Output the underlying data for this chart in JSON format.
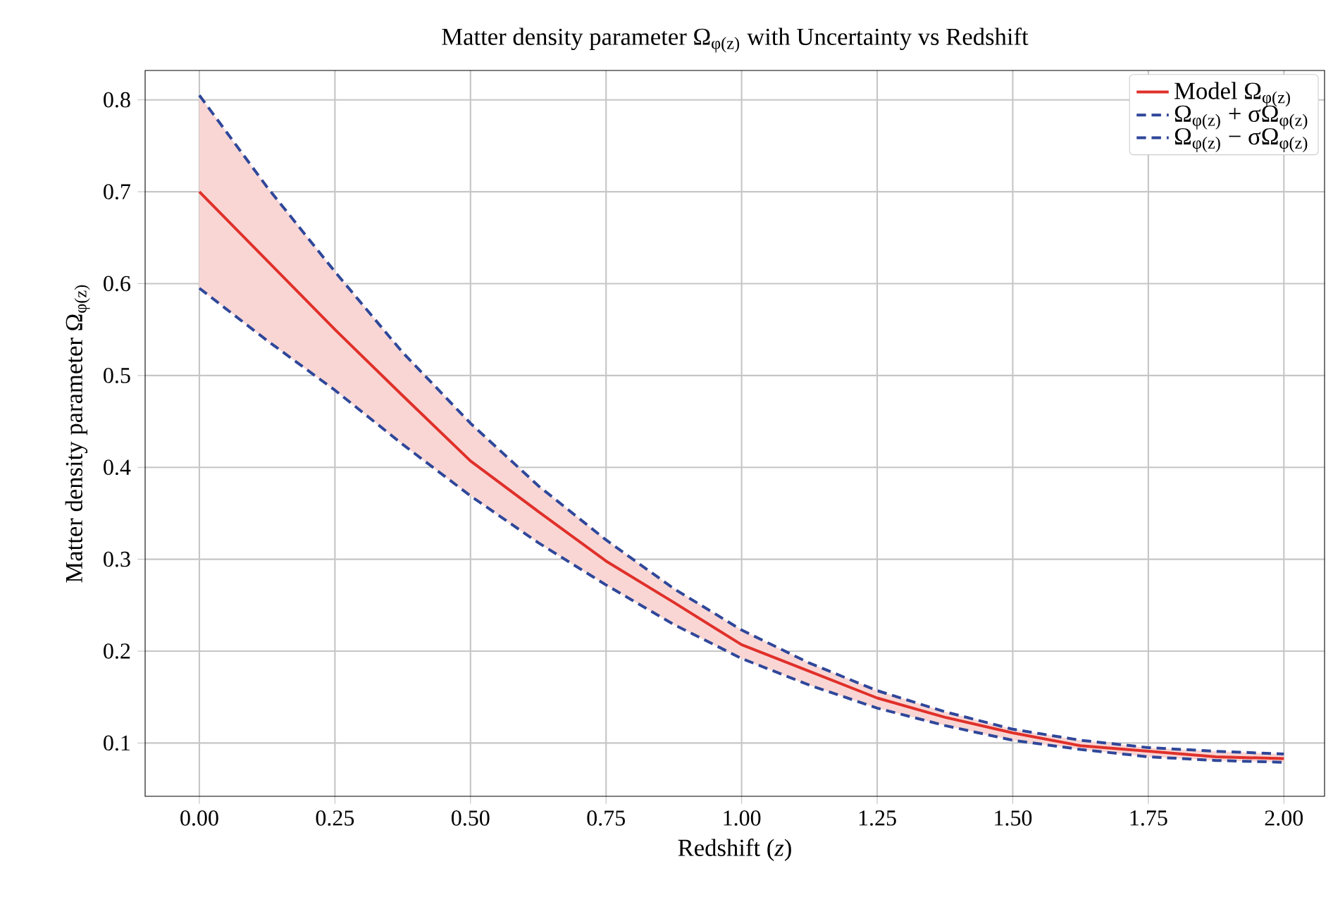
{
  "chart_data": {
    "type": "line",
    "title": "Matter density parameter Ω$_{φ(z)}$ with Uncertainty vs Redshift",
    "xlabel": "Redshift (*z*)",
    "ylabel": "Matter density parameter Ω$_{φ(z)}$",
    "x": [
      0,
      0.125,
      0.25,
      0.375,
      0.5,
      0.625,
      0.75,
      0.875,
      1.0,
      1.125,
      1.25,
      1.375,
      1.5,
      1.625,
      1.75,
      1.875,
      2.0
    ],
    "series": [
      {
        "name": "Model Ω$_{φ(z)}$",
        "color": "#e0302a",
        "line_style": "solid",
        "values": [
          0.7,
          0.625,
          0.55,
          0.478,
          0.407,
          0.352,
          0.298,
          0.253,
          0.207,
          0.178,
          0.149,
          0.128,
          0.111,
          0.097,
          0.091,
          0.085,
          0.083
        ],
        "lower": [
          0.595,
          0.538,
          0.484,
          0.425,
          0.369,
          0.318,
          0.272,
          0.229,
          0.192,
          0.163,
          0.138,
          0.119,
          0.103,
          0.093,
          0.085,
          0.081,
          0.079
        ],
        "upper": [
          0.805,
          0.705,
          0.613,
          0.525,
          0.448,
          0.38,
          0.321,
          0.268,
          0.223,
          0.187,
          0.157,
          0.134,
          0.115,
          0.103,
          0.095,
          0.091,
          0.088
        ]
      },
      {
        "name": "Ω$_{φ(z)}$ + σΩ$_{φ(z)}$",
        "color": "#2f479a",
        "line_style": "dashed",
        "values": [
          0.805,
          0.705,
          0.613,
          0.525,
          0.448,
          0.38,
          0.321,
          0.268,
          0.223,
          0.187,
          0.157,
          0.134,
          0.115,
          0.103,
          0.095,
          0.091,
          0.088
        ]
      },
      {
        "name": "Ω$_{φ(z)}$ − σΩ$_{φ(z)}$",
        "color": "#2f479a",
        "line_style": "dashed",
        "values": [
          0.595,
          0.538,
          0.484,
          0.425,
          0.369,
          0.318,
          0.272,
          0.229,
          0.192,
          0.163,
          0.138,
          0.119,
          0.103,
          0.093,
          0.085,
          0.081,
          0.079
        ]
      }
    ],
    "xlim": [
      -0.1,
      2.075
    ],
    "ylim": [
      0.042,
      0.832
    ],
    "xticks": [
      {
        "value": 0,
        "label": "0.00"
      },
      {
        "value": 0.25,
        "label": "0.25"
      },
      {
        "value": 0.5,
        "label": "0.50"
      },
      {
        "value": 0.75,
        "label": "0.75"
      },
      {
        "value": 1.0,
        "label": "1.00"
      },
      {
        "value": 1.25,
        "label": "1.25"
      },
      {
        "value": 1.5,
        "label": "1.50"
      },
      {
        "value": 1.75,
        "label": "1.75"
      },
      {
        "value": 2.0,
        "label": "2.00"
      }
    ],
    "yticks": [
      0.1,
      0.2,
      0.3,
      0.4,
      0.5,
      0.6,
      0.7,
      0.8
    ],
    "grid": true,
    "legend": "top right"
  }
}
